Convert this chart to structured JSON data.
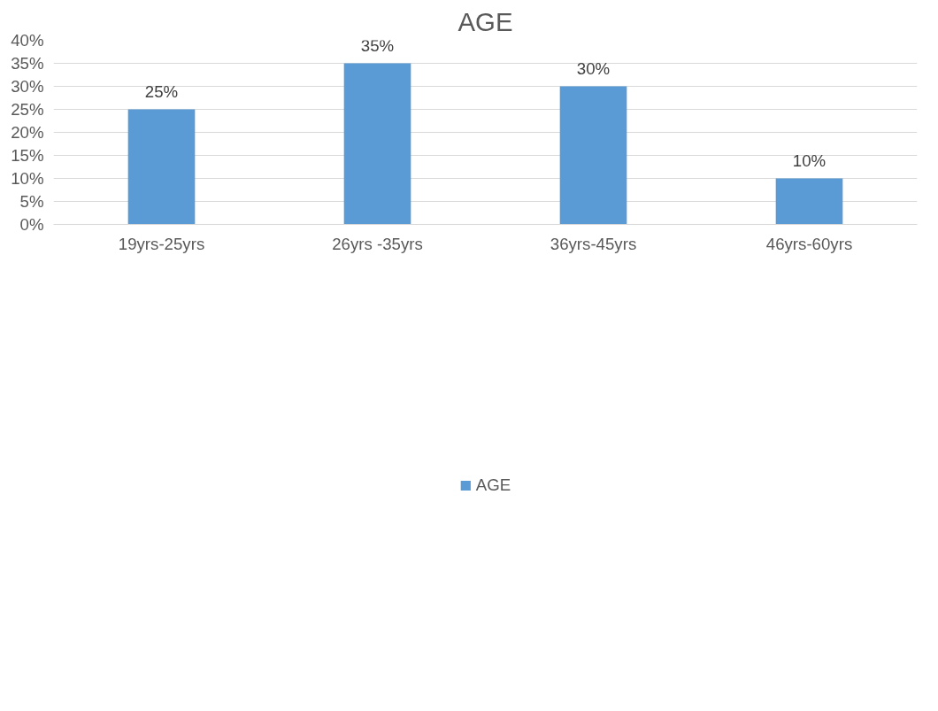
{
  "chart_data": {
    "type": "bar",
    "title": "AGE",
    "categories": [
      "19yrs-25yrs",
      "26yrs -35yrs",
      "36yrs-45yrs",
      "46yrs-60yrs"
    ],
    "series": [
      {
        "name": "AGE",
        "color": "#5b9bd5",
        "values": [
          25,
          35,
          30,
          10
        ]
      }
    ],
    "value_labels": [
      "25%",
      "35%",
      "30%",
      "10%"
    ],
    "ylim": [
      0,
      40
    ],
    "yticks": [
      {
        "value": 0,
        "label": "0%"
      },
      {
        "value": 5,
        "label": "5%"
      },
      {
        "value": 10,
        "label": "10%"
      },
      {
        "value": 15,
        "label": "15%"
      },
      {
        "value": 20,
        "label": "20%"
      },
      {
        "value": 25,
        "label": "25%"
      },
      {
        "value": 30,
        "label": "30%"
      },
      {
        "value": 35,
        "label": "35%"
      },
      {
        "value": 40,
        "label": "40%"
      }
    ],
    "grid": "y",
    "legend": "bottom"
  }
}
